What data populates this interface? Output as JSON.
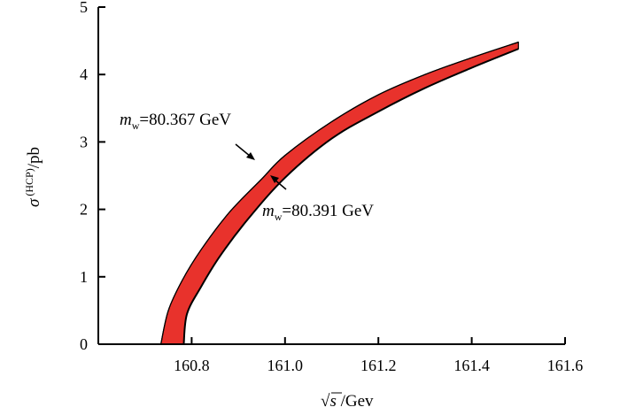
{
  "chart_data": {
    "type": "area",
    "xlim": [
      160.6,
      161.6
    ],
    "ylim": [
      0,
      5
    ],
    "x_ticks": [
      "160.8",
      "161.0",
      "161.2",
      "161.4",
      "161.6"
    ],
    "y_ticks": [
      "0",
      "1",
      "2",
      "3",
      "4",
      "5"
    ],
    "xlabel": {
      "root_symbol": "√",
      "root_var": "s",
      "unit": " /Gev"
    },
    "ylabel": {
      "sigma": "σ",
      "superscript": " (HCP)",
      "unit": "/pb"
    },
    "series": [
      {
        "label_prefix": "m",
        "label_sub": "w",
        "label_value": "=80.367 GeV",
        "x": [
          160.734,
          160.75,
          160.78,
          160.82,
          160.88,
          160.95,
          161.0,
          161.1,
          161.2,
          161.3,
          161.4,
          161.5
        ],
        "y": [
          0,
          0.5,
          0.95,
          1.4,
          1.95,
          2.45,
          2.8,
          3.3,
          3.7,
          4.0,
          4.25,
          4.48
        ]
      },
      {
        "label_prefix": "m",
        "label_sub": "w",
        "label_value": "=80.391 GeV",
        "x": [
          160.783,
          160.79,
          160.82,
          160.86,
          160.92,
          161.0,
          161.1,
          161.2,
          161.3,
          161.4,
          161.5
        ],
        "y": [
          0,
          0.45,
          0.85,
          1.3,
          1.85,
          2.47,
          3.05,
          3.45,
          3.8,
          4.1,
          4.38
        ]
      }
    ],
    "fill_color": "#e8322c",
    "edge_color": "#000000"
  }
}
